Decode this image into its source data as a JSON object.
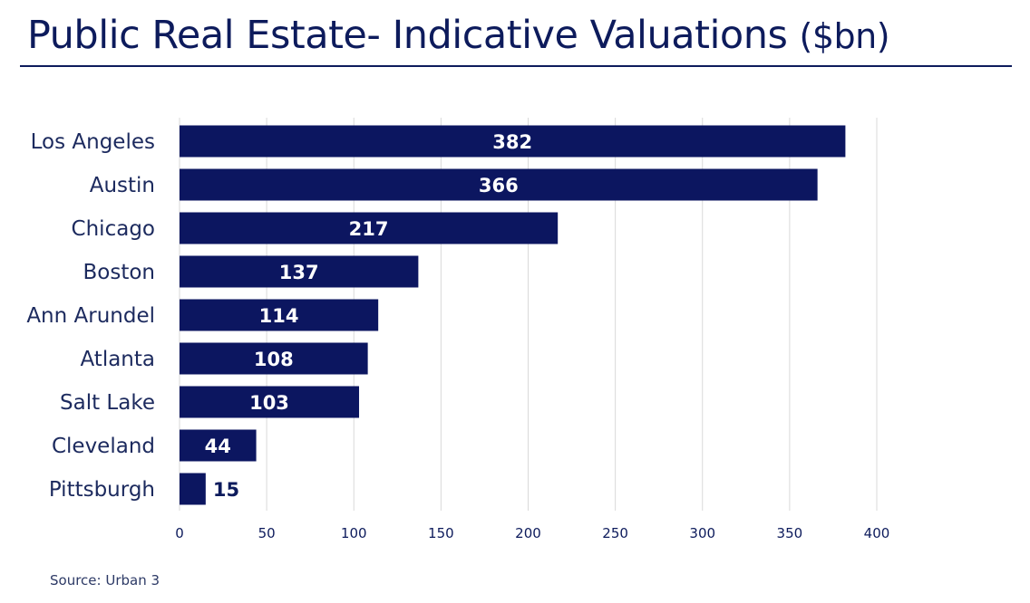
{
  "title": {
    "main": "Public Real Estate- Indicative Valuations",
    "unit": "($bn)"
  },
  "source": "Source: Urban 3",
  "colors": {
    "bar": "#0c1660",
    "text": "#0d1b5c",
    "grid": "#d9d9d9",
    "label_inside": "#ffffff"
  },
  "chart_data": {
    "type": "bar",
    "orientation": "horizontal",
    "title": "Public Real Estate- Indicative Valuations ($bn)",
    "categories": [
      "Los Angeles",
      "Austin",
      "Chicago",
      "Boston",
      "Ann Arundel",
      "Atlanta",
      "Salt Lake",
      "Cleveland",
      "Pittsburgh"
    ],
    "values": [
      382,
      366,
      217,
      137,
      114,
      108,
      103,
      44,
      15
    ],
    "xlabel": "",
    "ylabel": "",
    "xlim": [
      0,
      400
    ],
    "xticks": [
      0,
      50,
      100,
      150,
      200,
      250,
      300,
      350,
      400
    ],
    "grid": true,
    "legend": "none"
  }
}
